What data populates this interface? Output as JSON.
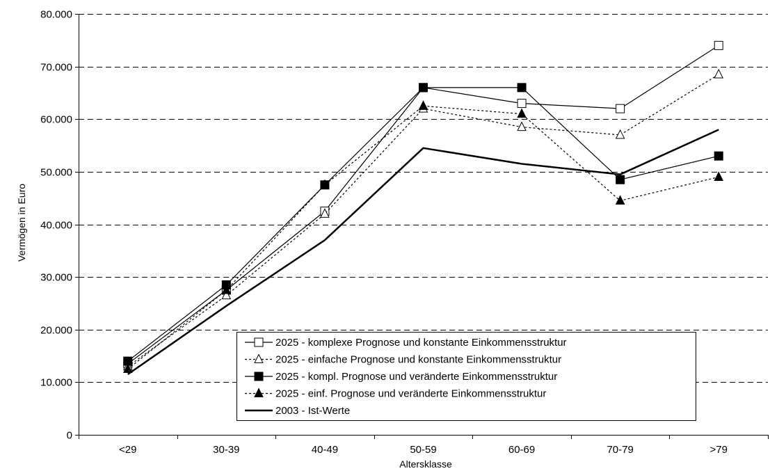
{
  "chart_data": {
    "type": "line",
    "xlabel": "Altersklasse",
    "ylabel": "Vermögen in Euro",
    "categories": [
      "<29",
      "30-39",
      "40-49",
      "50-59",
      "60-69",
      "70-79",
      ">79"
    ],
    "ylim": [
      0,
      80000
    ],
    "yticks": [
      0,
      10000,
      20000,
      30000,
      40000,
      50000,
      60000,
      70000,
      80000
    ],
    "ytick_labels": [
      "0",
      "10.000",
      "20.000",
      "30.000",
      "40.000",
      "50.000",
      "60.000",
      "70.000",
      "80.000"
    ],
    "grid": "horizontal dashed",
    "legend_position": "bottom-right inside plot",
    "series": [
      {
        "name": "2025 - komplexe Prognose und konstante Einkommensstruktur",
        "values": [
          13500,
          27500,
          42500,
          66000,
          63000,
          62000,
          74000
        ],
        "line": "solid-thin",
        "marker": "square-open"
      },
      {
        "name": "2025 - einfache Prognose und konstante Einkommensstruktur",
        "values": [
          13000,
          26500,
          42000,
          62000,
          58500,
          57000,
          68500
        ],
        "line": "dotted",
        "marker": "triangle-open"
      },
      {
        "name": "2025 - kompl. Prognose und veränderte Einkommensstruktur",
        "values": [
          14000,
          28500,
          47500,
          66000,
          66000,
          48500,
          53000
        ],
        "line": "solid-thin",
        "marker": "square-filled"
      },
      {
        "name": "2025 - einf. Prognose und veränderte Einkommensstruktur",
        "values": [
          12500,
          27500,
          47500,
          62500,
          61000,
          44500,
          49000
        ],
        "line": "dotted",
        "marker": "triangle-filled"
      },
      {
        "name": "2003 - Ist-Werte",
        "values": [
          11500,
          24500,
          37000,
          54500,
          51500,
          49500,
          58000
        ],
        "line": "solid-thick",
        "marker": "none"
      }
    ]
  }
}
